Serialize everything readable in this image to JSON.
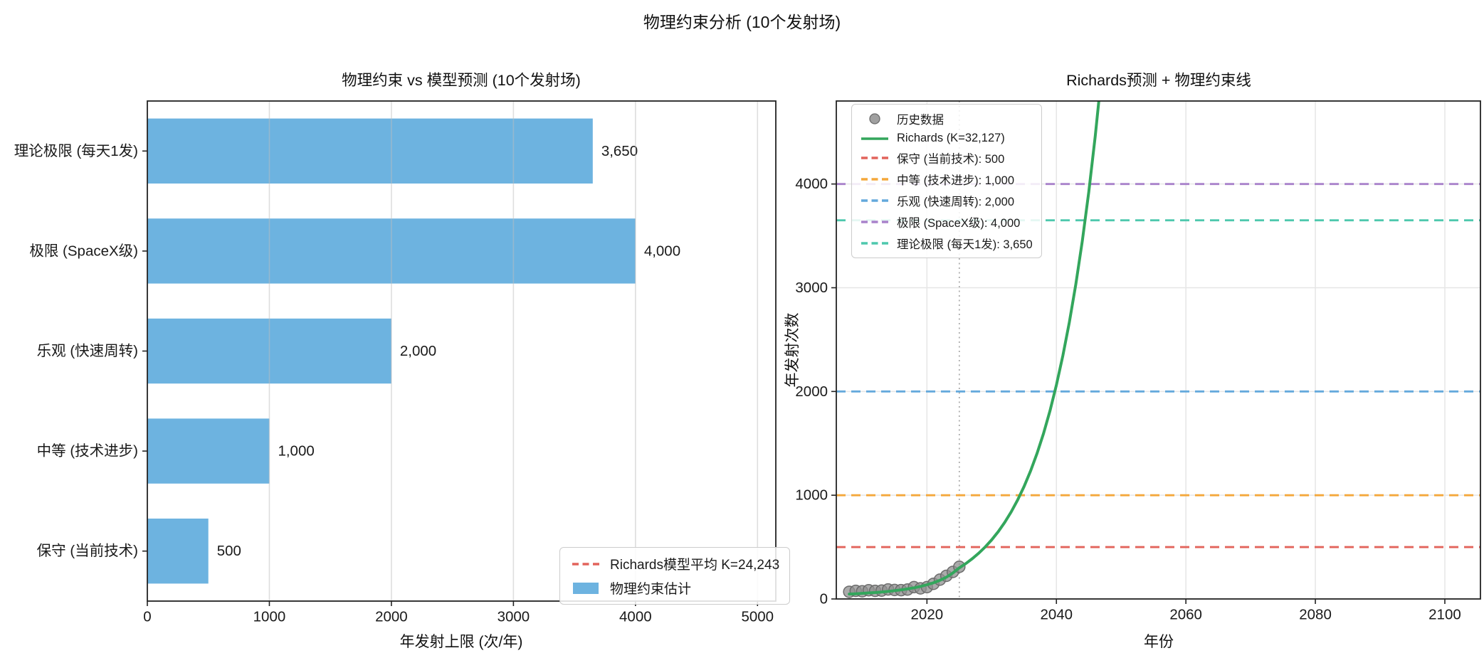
{
  "figure": {
    "title": "物理约束分析 (10个发射场)",
    "background": "#ffffff"
  },
  "chart_data": [
    {
      "id": "constraints-bar-chart",
      "type": "bar",
      "orientation": "horizontal",
      "title": "物理约束 vs 模型预测 (10个发射场)",
      "xlabel": "年发射上限 (次/年)",
      "ylabel": "",
      "categories": [
        "理论极限 (每天1发)",
        "极限 (SpaceX级)",
        "乐观 (快速周转)",
        "中等 (技术进步)",
        "保守 (当前技术)"
      ],
      "values": [
        3650,
        4000,
        2000,
        1000,
        500
      ],
      "value_labels": [
        "3,650",
        "4,000",
        "2,000",
        "1,000",
        "500"
      ],
      "bar_color": "#6DB3E0",
      "xlim": [
        0,
        5150
      ],
      "xticks": [
        0,
        1000,
        2000,
        3000,
        4000,
        5000
      ],
      "grid": true,
      "legend": {
        "position": "lower-right",
        "entries": [
          {
            "label": "Richards模型平均 K=24,243",
            "type": "dashed",
            "color": "#E2635B"
          },
          {
            "label": "物理约束估计",
            "type": "patch",
            "color": "#6DB3E0"
          }
        ]
      }
    },
    {
      "id": "richards-forecast-chart",
      "type": "line",
      "title": "Richards预测 + 物理约束线",
      "xlabel": "年份",
      "ylabel": "年发射次数",
      "xlim": [
        2006,
        2105.5
      ],
      "ylim": [
        0,
        4800
      ],
      "xticks": [
        2020,
        2040,
        2060,
        2080,
        2100
      ],
      "yticks": [
        0,
        1000,
        2000,
        3000,
        4000
      ],
      "grid": true,
      "forecast_start_line": {
        "x": 2025,
        "style": "dotted",
        "color": "#A9A9A9"
      },
      "series": [
        {
          "name": "历史数据",
          "type": "scatter",
          "color": "#8F8F8F",
          "edge_color": "#6C6C6C",
          "x": [
            2008,
            2009,
            2010,
            2011,
            2012,
            2013,
            2014,
            2015,
            2016,
            2017,
            2018,
            2019,
            2020,
            2021,
            2022,
            2023,
            2024,
            2025
          ],
          "y": [
            69,
            78,
            74,
            84,
            78,
            81,
            92,
            87,
            85,
            91,
            114,
            102,
            114,
            146,
            186,
            223,
            261,
            310
          ]
        },
        {
          "name": "Richards (K=32,127)",
          "type": "line",
          "color": "#33A65C",
          "x": [
            2008,
            2009,
            2010,
            2011,
            2012,
            2013,
            2014,
            2015,
            2016,
            2017,
            2018,
            2019,
            2020,
            2021,
            2022,
            2023,
            2024,
            2025,
            2026,
            2027,
            2028,
            2029,
            2030,
            2031,
            2032,
            2033,
            2034,
            2035,
            2036,
            2037,
            2038,
            2039,
            2040,
            2041,
            2042,
            2043,
            2044,
            2045,
            2046,
            2047
          ],
          "y": [
            47,
            50,
            54,
            58,
            62,
            67,
            73,
            80,
            88,
            97,
            108,
            121,
            137,
            156,
            180,
            210,
            250,
            300,
            341,
            388,
            441,
            501,
            570,
            648,
            737,
            838,
            953,
            1084,
            1233,
            1402,
            1594,
            1813,
            2062,
            2345,
            2667,
            3033,
            3449,
            3922,
            4461,
            5073
          ]
        }
      ],
      "hlines": [
        {
          "label": "保守 (当前技术): 500",
          "y": 500,
          "color": "#E2635B"
        },
        {
          "label": "中等 (技术进步): 1,000",
          "y": 1000,
          "color": "#F4A83C"
        },
        {
          "label": "乐观 (快速周转): 2,000",
          "y": 2000,
          "color": "#64A9DC"
        },
        {
          "label": "极限 (SpaceX级): 4,000",
          "y": 4000,
          "color": "#A982CB"
        },
        {
          "label": "理论极限 (每天1发): 3,650",
          "y": 3650,
          "color": "#4EC8AD"
        }
      ],
      "legend": {
        "position": "upper-left",
        "entries": [
          {
            "label": "历史数据",
            "type": "scatter",
            "color": "#8F8F8F"
          },
          {
            "label": "Richards (K=32,127)",
            "type": "line",
            "color": "#33A65C"
          },
          {
            "label": "保守 (当前技术): 500",
            "type": "dashed",
            "color": "#E2635B"
          },
          {
            "label": "中等 (技术进步): 1,000",
            "type": "dashed",
            "color": "#F4A83C"
          },
          {
            "label": "乐观 (快速周转): 2,000",
            "type": "dashed",
            "color": "#64A9DC"
          },
          {
            "label": "极限 (SpaceX级): 4,000",
            "type": "dashed",
            "color": "#A982CB"
          },
          {
            "label": "理论极限 (每天1发): 3,650",
            "type": "dashed",
            "color": "#4EC8AD"
          }
        ]
      }
    }
  ]
}
